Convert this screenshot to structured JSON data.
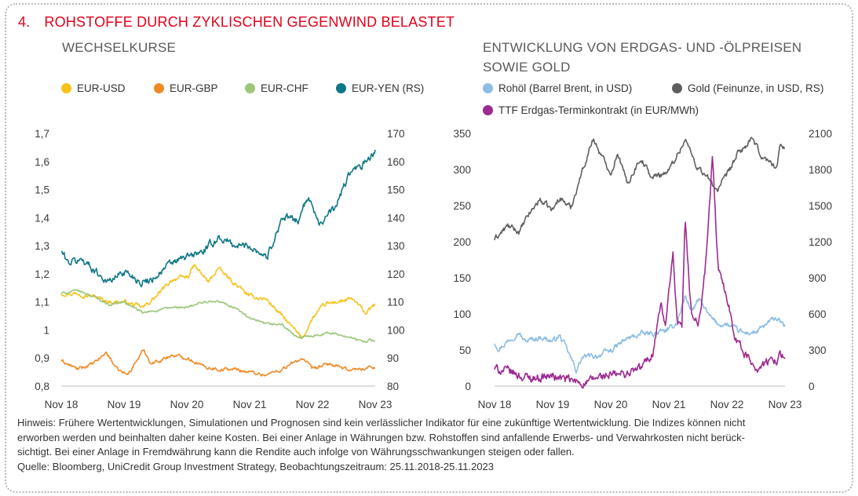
{
  "header": {
    "number": "4.",
    "title": "ROHSTOFFE DURCH ZYKLISCHEN GEGENWIND BELASTET"
  },
  "left_panel": {
    "subtitle": "WECHSELKURSE",
    "legend": [
      {
        "label": "EUR-USD",
        "color": "#f6c21a"
      },
      {
        "label": "EUR-GBP",
        "color": "#f08a24"
      },
      {
        "label": "EUR-CHF",
        "color": "#9dc67a"
      },
      {
        "label": "EUR-YEN (RS)",
        "color": "#0e7785"
      }
    ]
  },
  "right_panel": {
    "subtitle_line1": "ENTWICKLUNG VON ERDGAS- UND -ÖLPREISEN",
    "subtitle_line2": "SOWIE GOLD",
    "legend": [
      {
        "label": "Rohöl (Barrel Brent, in USD)",
        "color": "#8dbde3"
      },
      {
        "label": "Gold (Feinunze, in USD, RS)",
        "color": "#5e5e5e"
      },
      {
        "label": "TTF Erdgas-Terminkontrakt (in EUR/MWh)",
        "color": "#9e2a8f"
      }
    ]
  },
  "chart_data": [
    {
      "type": "line",
      "title": "WECHSELKURSE",
      "x_ticks": [
        "Nov 18",
        "Nov 19",
        "Nov 20",
        "Nov 21",
        "Nov 22",
        "Nov 23"
      ],
      "x_range": [
        "2018-11-25",
        "2023-11-25"
      ],
      "y_left_ticks": [
        "0,8",
        "0,9",
        "1",
        "1,1",
        "1,2",
        "1,3",
        "1,4",
        "1,5",
        "1,6",
        "1,7"
      ],
      "y_left_range": [
        0.8,
        1.7
      ],
      "y_right_ticks": [
        "80",
        "90",
        "100",
        "110",
        "120",
        "130",
        "140",
        "150",
        "160",
        "170"
      ],
      "y_right_range": [
        80,
        170
      ],
      "series": [
        {
          "name": "EUR-USD",
          "axis": "left",
          "color": "#f6c21a",
          "x": [
            "2018-11-25",
            "2019-03-01",
            "2019-06-01",
            "2019-09-01",
            "2019-11-25",
            "2020-03-15",
            "2020-06-01",
            "2020-09-01",
            "2020-12-01",
            "2021-01-06",
            "2021-03-31",
            "2021-05-25",
            "2021-08-20",
            "2021-11-25",
            "2022-03-01",
            "2022-06-01",
            "2022-09-27",
            "2022-11-25",
            "2023-02-01",
            "2023-04-15",
            "2023-07-15",
            "2023-10-01",
            "2023-11-25"
          ],
          "values": [
            1.13,
            1.13,
            1.12,
            1.1,
            1.1,
            1.08,
            1.12,
            1.18,
            1.19,
            1.23,
            1.17,
            1.22,
            1.17,
            1.12,
            1.11,
            1.05,
            0.97,
            1.04,
            1.09,
            1.1,
            1.11,
            1.06,
            1.09
          ]
        },
        {
          "name": "EUR-GBP",
          "axis": "left",
          "color": "#f08a24",
          "x": [
            "2018-11-25",
            "2019-03-01",
            "2019-06-01",
            "2019-08-15",
            "2019-10-15",
            "2019-12-15",
            "2020-03-19",
            "2020-05-01",
            "2020-09-01",
            "2020-12-01",
            "2021-03-01",
            "2021-06-01",
            "2021-09-01",
            "2021-11-25",
            "2022-03-01",
            "2022-06-01",
            "2022-09-27",
            "2022-11-25",
            "2023-03-01",
            "2023-06-01",
            "2023-09-01",
            "2023-11-25"
          ],
          "values": [
            0.89,
            0.86,
            0.88,
            0.92,
            0.86,
            0.84,
            0.93,
            0.88,
            0.91,
            0.9,
            0.87,
            0.86,
            0.86,
            0.85,
            0.84,
            0.86,
            0.9,
            0.86,
            0.88,
            0.86,
            0.86,
            0.87
          ]
        },
        {
          "name": "EUR-CHF",
          "axis": "left",
          "color": "#9dc67a",
          "x": [
            "2018-11-25",
            "2019-03-01",
            "2019-06-01",
            "2019-09-01",
            "2019-11-25",
            "2020-03-15",
            "2020-06-01",
            "2020-09-01",
            "2020-12-01",
            "2021-03-01",
            "2021-06-01",
            "2021-09-01",
            "2021-11-25",
            "2022-03-01",
            "2022-06-01",
            "2022-09-01",
            "2022-11-25",
            "2023-03-01",
            "2023-06-01",
            "2023-09-01",
            "2023-11-25"
          ],
          "values": [
            1.13,
            1.14,
            1.12,
            1.09,
            1.1,
            1.06,
            1.07,
            1.08,
            1.08,
            1.1,
            1.1,
            1.08,
            1.04,
            1.02,
            1.02,
            0.97,
            0.98,
            0.99,
            0.98,
            0.96,
            0.965
          ]
        },
        {
          "name": "EUR-YEN (RS)",
          "axis": "right",
          "color": "#0e7785",
          "x": [
            "2018-11-25",
            "2019-01-03",
            "2019-04-01",
            "2019-08-25",
            "2019-11-25",
            "2020-03-09",
            "2020-05-01",
            "2020-09-01",
            "2020-12-01",
            "2021-03-01",
            "2021-06-01",
            "2021-09-01",
            "2021-11-25",
            "2022-03-07",
            "2022-06-01",
            "2022-09-01",
            "2022-10-21",
            "2022-11-25",
            "2023-01-03",
            "2023-04-01",
            "2023-07-01",
            "2023-09-01",
            "2023-11-25"
          ],
          "values": [
            128,
            124,
            125,
            117,
            121,
            117,
            118,
            124,
            126,
            128,
            133,
            130,
            130,
            126,
            140,
            139,
            146,
            145,
            138,
            143,
            156,
            158,
            163
          ]
        }
      ]
    },
    {
      "type": "line",
      "title": "ENTWICKLUNG VON ERDGAS- UND -ÖLPREISEN SOWIE GOLD",
      "x_ticks": [
        "Nov 18",
        "Nov 19",
        "Nov 20",
        "Nov 21",
        "Nov 22",
        "Nov 23"
      ],
      "x_range": [
        "2018-11-25",
        "2023-11-25"
      ],
      "y_left_ticks": [
        "0",
        "50",
        "100",
        "150",
        "200",
        "250",
        "300",
        "350"
      ],
      "y_left_range": [
        0,
        350
      ],
      "y_right_ticks": [
        "0",
        "300",
        "600",
        "900",
        "1200",
        "1500",
        "1800",
        "2100"
      ],
      "y_right_range": [
        0,
        2100
      ],
      "series": [
        {
          "name": "Rohöl (Barrel Brent, in USD)",
          "axis": "left",
          "color": "#8dbde3",
          "x": [
            "2018-11-25",
            "2018-12-24",
            "2019-04-25",
            "2019-06-01",
            "2019-09-16",
            "2019-11-25",
            "2020-01-06",
            "2020-02-15",
            "2020-04-21",
            "2020-06-01",
            "2020-09-01",
            "2020-12-01",
            "2021-03-01",
            "2021-06-01",
            "2021-09-01",
            "2021-11-25",
            "2022-01-15",
            "2022-03-08",
            "2022-04-15",
            "2022-06-08",
            "2022-08-01",
            "2022-09-27",
            "2022-11-25",
            "2023-03-15",
            "2023-06-01",
            "2023-09-27",
            "2023-11-25"
          ],
          "values": [
            60,
            52,
            75,
            62,
            68,
            62,
            70,
            55,
            22,
            40,
            42,
            50,
            65,
            72,
            73,
            78,
            88,
            125,
            105,
            120,
            98,
            86,
            85,
            73,
            75,
            95,
            82
          ]
        },
        {
          "name": "Gold (Feinunze, in USD, RS)",
          "axis": "right",
          "color": "#5e5e5e",
          "x": [
            "2018-11-25",
            "2019-02-15",
            "2019-05-01",
            "2019-06-25",
            "2019-09-04",
            "2019-11-25",
            "2020-01-08",
            "2020-03-19",
            "2020-05-15",
            "2020-08-06",
            "2020-10-01",
            "2020-11-30",
            "2021-01-06",
            "2021-03-08",
            "2021-06-01",
            "2021-08-09",
            "2021-11-25",
            "2022-03-08",
            "2022-05-15",
            "2022-09-27",
            "2022-11-25",
            "2023-02-01",
            "2023-05-04",
            "2023-07-01",
            "2023-10-05",
            "2023-10-27",
            "2023-11-25"
          ],
          "values": [
            1220,
            1330,
            1280,
            1420,
            1550,
            1460,
            1570,
            1480,
            1730,
            2060,
            1900,
            1770,
            1950,
            1680,
            1900,
            1730,
            1790,
            2050,
            1840,
            1630,
            1750,
            1930,
            2050,
            1910,
            1820,
            2000,
            2000
          ]
        },
        {
          "name": "TTF Erdgas-Terminkontrakt (in EUR/MWh)",
          "axis": "left",
          "color": "#9e2a8f",
          "x": [
            "2018-11-25",
            "2019-03-01",
            "2019-06-01",
            "2019-09-01",
            "2019-11-25",
            "2020-02-01",
            "2020-05-01",
            "2020-07-01",
            "2020-09-01",
            "2020-12-01",
            "2021-03-01",
            "2021-06-01",
            "2021-08-15",
            "2021-10-06",
            "2021-11-01",
            "2021-12-21",
            "2022-01-15",
            "2022-02-15",
            "2022-03-07",
            "2022-04-15",
            "2022-06-01",
            "2022-07-15",
            "2022-08-26",
            "2022-10-01",
            "2022-11-25",
            "2023-01-15",
            "2023-03-15",
            "2023-06-01",
            "2023-09-01",
            "2023-11-25"
          ],
          "values": [
            24,
            20,
            12,
            12,
            14,
            10,
            5,
            4,
            12,
            15,
            17,
            25,
            45,
            115,
            80,
            180,
            85,
            80,
            225,
            100,
            85,
            170,
            315,
            160,
            125,
            70,
            45,
            25,
            35,
            45
          ]
        }
      ]
    }
  ],
  "footnote": {
    "line1": "Hinweis: Frühere Wertentwicklungen, Simulationen und Prognosen sind kein verlässlicher Indikator für eine zukünftige Wertentwicklung. Die Indizes können nicht",
    "line2": "erworben werden und beinhalten daher keine Kosten. Bei einer Anlage in Währungen bzw. Rohstoffen sind anfallende Erwerbs- und Verwahrkosten nicht berück-",
    "line3": "sichtigt. Bei einer Anlage in Fremdwährung kann die Rendite auch infolge von Währungsschwankungen steigen oder fallen.",
    "source": "Quelle: Bloomberg, UniCredit Group Investment Strategy, Beobachtungszeitraum: 25.11.2018-25.11.2023"
  }
}
